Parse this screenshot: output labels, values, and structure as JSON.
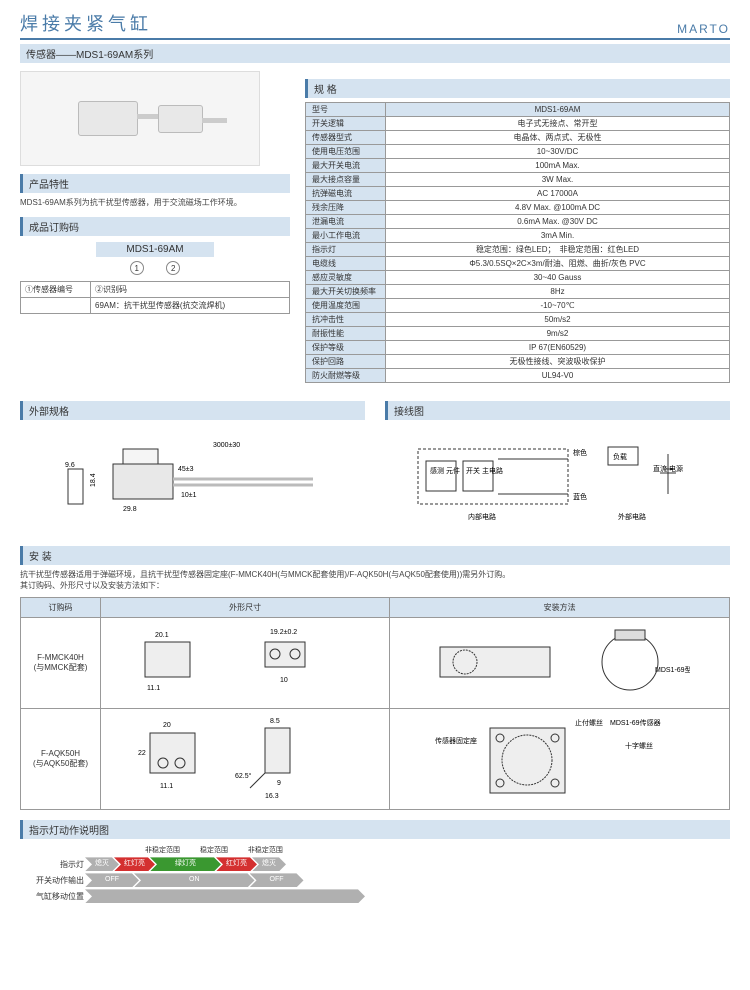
{
  "header": {
    "title": "焊接夹紧气缸",
    "brand": "MARTO"
  },
  "subtitle": "传感器——MDS1-69AM系列",
  "product_char": {
    "hdr": "产品特性",
    "desc": "MDS1-69AM系列为抗干扰型传感器，用于交流磁场工作环境。"
  },
  "order_code": {
    "hdr": "成品订购码",
    "model": "MDS1-69AM",
    "n1": "1",
    "n2": "2",
    "rows": [
      [
        "①传感器编号",
        "②识别码"
      ],
      [
        "",
        "69AM：抗干扰型传感器(抗交流焊机)"
      ]
    ]
  },
  "spec": {
    "hdr": "规 格",
    "rows": [
      [
        "型号",
        "MDS1-69AM"
      ],
      [
        "开关逻辑",
        "电子式无接点、常开型"
      ],
      [
        "传感器型式",
        "电晶体、两点式、无极性"
      ],
      [
        "使用电压范围",
        "10~30V/DC"
      ],
      [
        "最大开关电流",
        "100mA Max."
      ],
      [
        "最大接点容量",
        "3W Max."
      ],
      [
        "抗弹磁电流",
        "AC 17000A"
      ],
      [
        "残余压降",
        "4.8V Max. @100mA DC"
      ],
      [
        "泄漏电流",
        "0.6mA Max. @30V DC"
      ],
      [
        "最小工作电流",
        "3mA Min."
      ],
      [
        "指示灯",
        "稳定范围：绿色LED；　非稳定范围：红色LED"
      ],
      [
        "电缆线",
        "Φ5.3/0.5SQ×2C×3m/耐油、阻燃、曲折/灰色 PVC"
      ],
      [
        "感应灵敏度",
        "30~40 Gauss"
      ],
      [
        "最大开关切换频率",
        "8Hz"
      ],
      [
        "使用温度范围",
        "-10~70℃"
      ],
      [
        "抗冲击性",
        "50m/s2"
      ],
      [
        "耐振性能",
        "9m/s2"
      ],
      [
        "保护等级",
        "IP 67(EN60529)"
      ],
      [
        "保护回路",
        "无极性接线、突波吸收保护"
      ],
      [
        "防火耐燃等级",
        "UL94-V0"
      ]
    ]
  },
  "ext_spec": {
    "hdr": "外部规格",
    "dims": {
      "w": "29.8",
      "h": "18.4",
      "d": "9.6",
      "cable": "3000±30",
      "a": "45±3",
      "b": "10±1"
    }
  },
  "wiring": {
    "hdr": "接线图",
    "labels": {
      "sense": "感测\n元件",
      "sw": "开关\n主电路",
      "brown": "棕色",
      "blue": "蓝色",
      "load": "负载",
      "dc": "直流\n电源",
      "int": "内部电路",
      "ext": "外部电路"
    }
  },
  "install": {
    "hdr": "安 装",
    "note": "抗干扰型传感器适用于弹磁环境，且抗干扰型传感器固定座(F-MMCK40H(与MMCK配套使用)/F-AQK50H(与AQK50配套使用))需另外订购。\n其订购码、外形尺寸以及安装方法如下：",
    "cols": [
      "订购码",
      "外形尺寸",
      "安装方法"
    ],
    "r1": {
      "code": "F-MMCK40H\n(与MMCK配套)",
      "d1": "20.1",
      "d2": "11.1",
      "d3": "19.2±0.2",
      "d4": "10",
      "sensor": "MDS1-69型\n传感器"
    },
    "r2": {
      "code": "F-AQK50H\n(与AQK50配套)",
      "d1": "20",
      "d2": "22",
      "d3": "11.1",
      "d4": "8.5",
      "d5": "62.5°",
      "d6": "9",
      "d7": "16.3",
      "seat": "传感器固定座",
      "stop": "止付螺丝",
      "cross": "十字螺丝",
      "sensor": "MDS1-69传感器"
    }
  },
  "led": {
    "hdr": "指示灯动作说明图",
    "row1": {
      "label": "指示灯",
      "segs": [
        "熄灭",
        "红灯亮",
        "绿灯亮",
        "红灯亮",
        "熄灭"
      ]
    },
    "row2": {
      "label": "开关动作输出",
      "off": "OFF",
      "on": "ON"
    },
    "row3": {
      "label": "气缸移动位置"
    },
    "zone": {
      "unstable": "非稳定范围",
      "stable": "稳定范围"
    }
  }
}
